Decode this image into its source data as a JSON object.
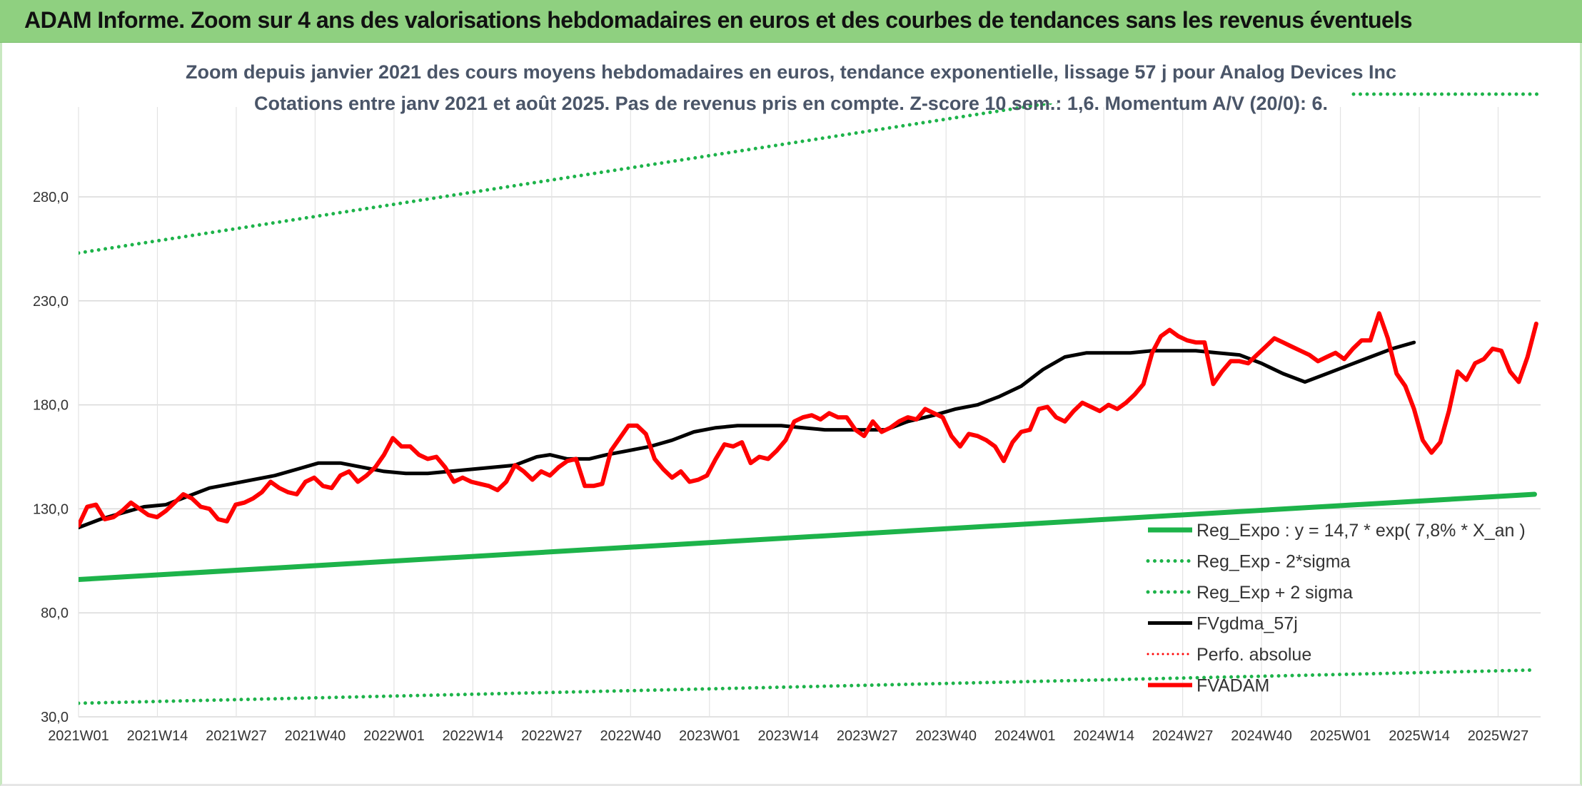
{
  "banner": {
    "title": "ADAM Informe. Zoom sur 4 ans des valorisations hebdomadaires en euros et des courbes de tendances sans les revenus éventuels"
  },
  "colors": {
    "banner_bg": "#8fd080",
    "trend_green": "#1db34a",
    "price_red": "#ff0000",
    "smooth_black": "#000000",
    "grid": "#d9d9d9"
  },
  "chart_data": {
    "type": "line",
    "title": "Zoom depuis janvier 2021 des cours moyens hebdomadaires en euros, tendance exponentielle, lissage 57 j pour Analog Devices Inc",
    "subtitle": "Cotations entre janv 2021 et août 2025. Pas de revenus pris en compte. Z-score 10 sem.: 1,6. Momentum A/V (20/0): 6.",
    "xlabel": "",
    "ylabel": "",
    "ylim": [
      30,
      280
    ],
    "y_ticks": [
      "280,0",
      "230,0",
      "180,0",
      "130,0",
      "80,0",
      "30,0"
    ],
    "y_tick_values": [
      280,
      230,
      180,
      130,
      80,
      30
    ],
    "x_ticks": [
      "2021W01",
      "2021W14",
      "2021W27",
      "2021W40",
      "2022W01",
      "2022W14",
      "2022W27",
      "2022W40",
      "2023W01",
      "2023W14",
      "2023W27",
      "2023W40",
      "2024W01",
      "2024W14",
      "2024W27",
      "2024W40",
      "2025W01",
      "2025W14",
      "2025W27"
    ],
    "grid": true,
    "legend_position": "bottom-right",
    "n_weeks": 241,
    "series": [
      {
        "name": "Reg_Expo : y = 14,7 * exp( 7,8% *  X_an )",
        "style": "solid-green",
        "points": [
          [
            0,
            96
          ],
          [
            240,
            137
          ]
        ]
      },
      {
        "name": "Reg_Exp - 2*sigma",
        "style": "dotted-green",
        "points": [
          [
            0,
            36.5
          ],
          [
            240,
            52.5
          ]
        ]
      },
      {
        "name": "Reg_Exp + 2 sigma",
        "style": "dotted-green",
        "points": [
          [
            0,
            253
          ],
          [
            240,
            361
          ]
        ]
      },
      {
        "name": "FVgdma_57j",
        "style": "solid-black",
        "points": [
          [
            0,
            121
          ],
          [
            5,
            125
          ],
          [
            10,
            128
          ],
          [
            15,
            131
          ],
          [
            20,
            132
          ],
          [
            25,
            136
          ],
          [
            30,
            140
          ],
          [
            35,
            142
          ],
          [
            40,
            144
          ],
          [
            45,
            146
          ],
          [
            50,
            149
          ],
          [
            55,
            152
          ],
          [
            60,
            152
          ],
          [
            65,
            150
          ],
          [
            70,
            148
          ],
          [
            75,
            147
          ],
          [
            80,
            147
          ],
          [
            85,
            148
          ],
          [
            90,
            149
          ],
          [
            95,
            150
          ],
          [
            100,
            151
          ],
          [
            105,
            155
          ],
          [
            108,
            156
          ],
          [
            112,
            154
          ],
          [
            117,
            154
          ],
          [
            121,
            156
          ],
          [
            126,
            158
          ],
          [
            131,
            160
          ],
          [
            136,
            163
          ],
          [
            141,
            167
          ],
          [
            146,
            169
          ],
          [
            151,
            170
          ],
          [
            156,
            170
          ],
          [
            161,
            170
          ],
          [
            166,
            169
          ],
          [
            171,
            168
          ],
          [
            176,
            168
          ],
          [
            181,
            168
          ],
          [
            185,
            168
          ],
          [
            190,
            172
          ],
          [
            196,
            175
          ],
          [
            201,
            178
          ],
          [
            206,
            180
          ],
          [
            211,
            184
          ],
          [
            216,
            189
          ],
          [
            221,
            197
          ],
          [
            226,
            203
          ],
          [
            231,
            205
          ],
          [
            236,
            205
          ],
          [
            241,
            205
          ],
          [
            246,
            206
          ],
          [
            251,
            206
          ],
          [
            256,
            206
          ],
          [
            261,
            205
          ],
          [
            266,
            204
          ],
          [
            271,
            200
          ],
          [
            276,
            195
          ],
          [
            281,
            191
          ],
          [
            286,
            195
          ],
          [
            291,
            199
          ],
          [
            296,
            203
          ],
          [
            301,
            207
          ],
          [
            306,
            210
          ]
        ]
      },
      {
        "name": "Perfo. absolue",
        "style": "dotted-red",
        "points": []
      },
      {
        "name": "FVADAM",
        "style": "solid-red",
        "points": [
          [
            0,
            122
          ],
          [
            2,
            131
          ],
          [
            4,
            132
          ],
          [
            6,
            125
          ],
          [
            8,
            126
          ],
          [
            10,
            129
          ],
          [
            12,
            133
          ],
          [
            14,
            130
          ],
          [
            16,
            127
          ],
          [
            18,
            126
          ],
          [
            20,
            129
          ],
          [
            22,
            133
          ],
          [
            24,
            137
          ],
          [
            26,
            135
          ],
          [
            28,
            131
          ],
          [
            30,
            130
          ],
          [
            32,
            125
          ],
          [
            34,
            124
          ],
          [
            36,
            132
          ],
          [
            38,
            133
          ],
          [
            40,
            135
          ],
          [
            42,
            138
          ],
          [
            44,
            143
          ],
          [
            46,
            140
          ],
          [
            48,
            138
          ],
          [
            50,
            137
          ],
          [
            52,
            143
          ],
          [
            54,
            145
          ],
          [
            56,
            141
          ],
          [
            58,
            140
          ],
          [
            60,
            146
          ],
          [
            62,
            148
          ],
          [
            64,
            143
          ],
          [
            66,
            146
          ],
          [
            68,
            150
          ],
          [
            70,
            156
          ],
          [
            72,
            164
          ],
          [
            74,
            160
          ],
          [
            76,
            160
          ],
          [
            78,
            156
          ],
          [
            80,
            154
          ],
          [
            82,
            155
          ],
          [
            84,
            150
          ],
          [
            86,
            143
          ],
          [
            88,
            145
          ],
          [
            90,
            143
          ],
          [
            92,
            142
          ],
          [
            94,
            141
          ],
          [
            96,
            139
          ],
          [
            98,
            143
          ],
          [
            100,
            151
          ],
          [
            102,
            148
          ],
          [
            104,
            144
          ],
          [
            106,
            148
          ],
          [
            108,
            146
          ],
          [
            110,
            150
          ],
          [
            112,
            153
          ],
          [
            114,
            154
          ],
          [
            116,
            141
          ],
          [
            118,
            141
          ],
          [
            120,
            142
          ],
          [
            122,
            158
          ],
          [
            124,
            164
          ],
          [
            126,
            170
          ],
          [
            128,
            170
          ],
          [
            130,
            166
          ],
          [
            132,
            154
          ],
          [
            134,
            149
          ],
          [
            136,
            145
          ],
          [
            138,
            148
          ],
          [
            140,
            143
          ],
          [
            142,
            144
          ],
          [
            144,
            146
          ],
          [
            146,
            154
          ],
          [
            148,
            161
          ],
          [
            150,
            160
          ],
          [
            152,
            162
          ],
          [
            154,
            152
          ],
          [
            156,
            155
          ],
          [
            158,
            154
          ],
          [
            160,
            158
          ],
          [
            162,
            163
          ],
          [
            164,
            172
          ],
          [
            166,
            174
          ],
          [
            168,
            175
          ],
          [
            170,
            173
          ],
          [
            172,
            176
          ],
          [
            174,
            174
          ],
          [
            176,
            174
          ],
          [
            178,
            168
          ],
          [
            180,
            165
          ],
          [
            182,
            172
          ],
          [
            184,
            167
          ],
          [
            186,
            169
          ],
          [
            188,
            172
          ],
          [
            190,
            174
          ],
          [
            192,
            173
          ],
          [
            194,
            178
          ],
          [
            196,
            176
          ],
          [
            198,
            174
          ],
          [
            200,
            165
          ],
          [
            202,
            160
          ],
          [
            204,
            166
          ],
          [
            206,
            165
          ],
          [
            208,
            163
          ],
          [
            210,
            160
          ],
          [
            212,
            153
          ],
          [
            214,
            162
          ],
          [
            216,
            167
          ],
          [
            218,
            168
          ],
          [
            220,
            178
          ],
          [
            222,
            179
          ],
          [
            224,
            174
          ],
          [
            226,
            172
          ],
          [
            228,
            177
          ],
          [
            230,
            181
          ],
          [
            232,
            179
          ],
          [
            234,
            177
          ],
          [
            236,
            180
          ],
          [
            238,
            178
          ],
          [
            240,
            181
          ],
          [
            242,
            185
          ],
          [
            244,
            190
          ],
          [
            246,
            205
          ],
          [
            248,
            213
          ],
          [
            250,
            216
          ],
          [
            252,
            213
          ],
          [
            254,
            211
          ],
          [
            256,
            210
          ],
          [
            258,
            210
          ],
          [
            260,
            190
          ],
          [
            262,
            196
          ],
          [
            264,
            201
          ],
          [
            266,
            201
          ],
          [
            268,
            200
          ],
          [
            270,
            204
          ],
          [
            272,
            208
          ],
          [
            274,
            212
          ],
          [
            276,
            210
          ],
          [
            278,
            208
          ],
          [
            280,
            206
          ],
          [
            282,
            204
          ],
          [
            284,
            201
          ],
          [
            286,
            203
          ],
          [
            288,
            205
          ],
          [
            290,
            202
          ],
          [
            292,
            207
          ],
          [
            294,
            211
          ],
          [
            296,
            211
          ],
          [
            298,
            224
          ],
          [
            300,
            212
          ],
          [
            302,
            195
          ],
          [
            304,
            189
          ],
          [
            306,
            178
          ],
          [
            308,
            163
          ],
          [
            310,
            157
          ],
          [
            312,
            162
          ],
          [
            314,
            177
          ],
          [
            316,
            196
          ],
          [
            318,
            192
          ],
          [
            320,
            200
          ],
          [
            322,
            202
          ],
          [
            324,
            207
          ],
          [
            326,
            206
          ],
          [
            328,
            196
          ],
          [
            330,
            191
          ],
          [
            332,
            203
          ],
          [
            334,
            219
          ]
        ]
      }
    ]
  }
}
